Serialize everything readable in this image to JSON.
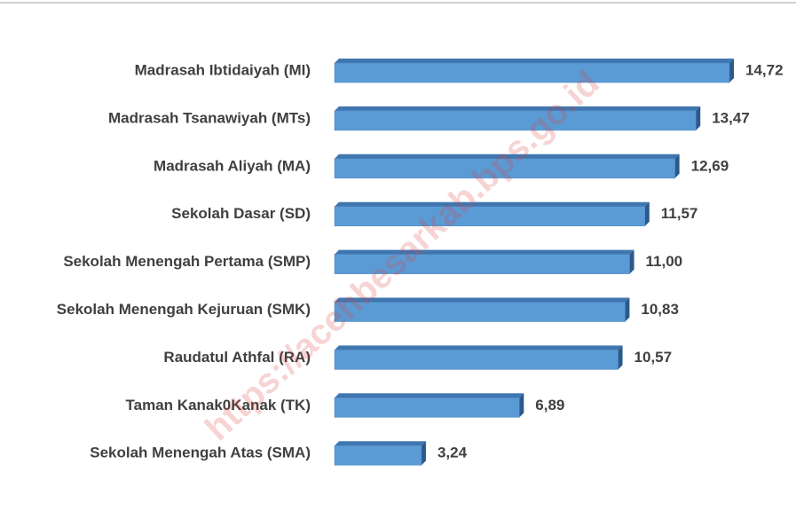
{
  "chart_data": {
    "type": "bar",
    "orientation": "horizontal",
    "categories": [
      "Madrasah Ibtidaiyah (MI)",
      "Madrasah Tsanawiyah (MTs)",
      "Madrasah Aliyah (MA)",
      "Sekolah Dasar (SD)",
      "Sekolah Menengah Pertama (SMP)",
      "Sekolah Menengah Kejuruan (SMK)",
      "Raudatul Athfal (RA)",
      "Taman Kanak0Kanak (TK)",
      "Sekolah Menengah Atas (SMA)"
    ],
    "values": [
      14.72,
      13.47,
      12.69,
      11.57,
      11.0,
      10.83,
      10.57,
      6.89,
      3.24
    ],
    "value_labels": [
      "14,72",
      "13,47",
      "12,69",
      "11,57",
      "11,00",
      "10,83",
      "10,57",
      "6,89",
      "3,24"
    ],
    "color": "#5b9bd5",
    "watermark": "https://acehbesarkab.bps.go.id"
  }
}
